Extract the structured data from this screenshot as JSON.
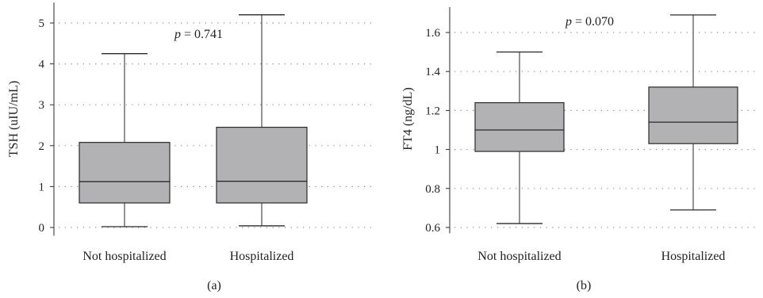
{
  "chart_data": [
    {
      "type": "box",
      "panel_label": "(a)",
      "ylabel": "TSH (uIU/mL)",
      "ylim": [
        -0.2,
        5.5
      ],
      "yticks": [
        0,
        1,
        2,
        3,
        4,
        5
      ],
      "ytick_labels": [
        "0",
        "1",
        "2",
        "3",
        "4",
        "5"
      ],
      "grid": "horizontal dotted",
      "categories": [
        "Not hospitalized",
        "Hospitalized"
      ],
      "boxes": [
        {
          "min": 0.02,
          "q1": 0.6,
          "median": 1.12,
          "q3": 2.08,
          "max": 4.25
        },
        {
          "min": 0.04,
          "q1": 0.6,
          "median": 1.13,
          "q3": 2.45,
          "max": 5.2
        }
      ],
      "p_prefix": "p",
      "p_text": " = 0.741"
    },
    {
      "type": "box",
      "panel_label": "(b)",
      "ylabel": "FT4 (ng/dL)",
      "ylim": [
        0.57,
        1.73
      ],
      "yticks": [
        0.6,
        0.8,
        1.0,
        1.2,
        1.4,
        1.6
      ],
      "ytick_labels": [
        "0.6",
        "0.8",
        "1",
        "1.2",
        "1.4",
        "1.6"
      ],
      "grid": "horizontal dotted",
      "categories": [
        "Not hospitalized",
        "Hospitalized"
      ],
      "boxes": [
        {
          "min": 0.62,
          "q1": 0.99,
          "median": 1.1,
          "q3": 1.24,
          "max": 1.5
        },
        {
          "min": 0.69,
          "q1": 1.03,
          "median": 1.14,
          "q3": 1.32,
          "max": 1.69
        }
      ],
      "p_prefix": "p",
      "p_text": " = 0.070"
    }
  ],
  "colors": {
    "box_fill": "#b2b2b4",
    "line": "#2a2a2a",
    "grid": "#8a8a8a"
  }
}
